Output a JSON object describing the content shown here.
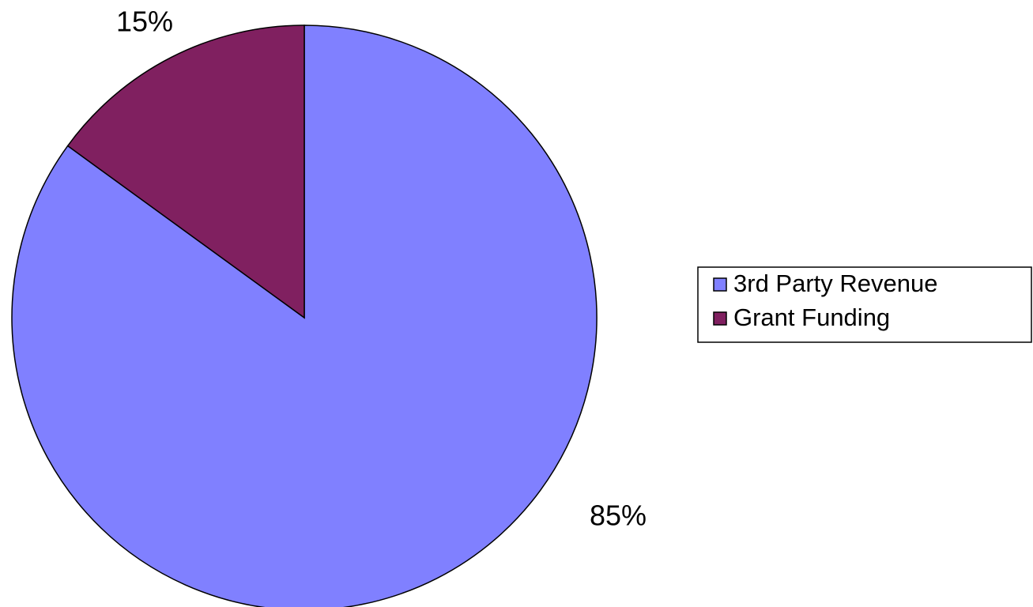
{
  "chart_data": {
    "type": "pie",
    "categories": [
      "3rd Party Revenue",
      "Grant Funding"
    ],
    "values": [
      85,
      15
    ],
    "value_labels": [
      "85%",
      "15%"
    ],
    "colors": [
      "#8080ff",
      "#802060"
    ],
    "legend": "right"
  }
}
